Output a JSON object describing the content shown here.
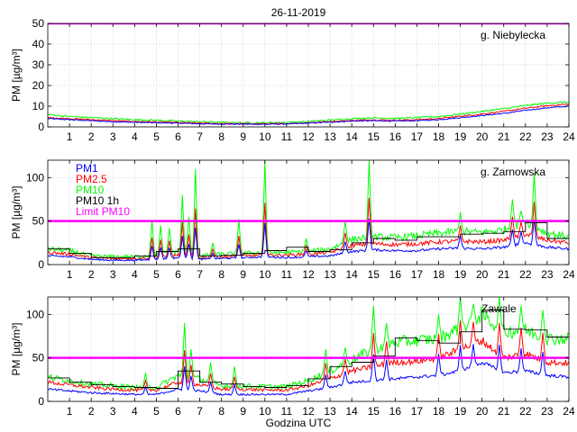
{
  "figure_title": "26-11-2019",
  "x_label": "Godzina UTC",
  "colors": {
    "pm1": "#0000ff",
    "pm25": "#ff0000",
    "pm10": "#00ff00",
    "pm10_1h": "#000000",
    "limit": "#ff00ff"
  },
  "legend": [
    "PM1",
    "PM2.5",
    "PM10",
    "PM10 1h",
    "Limit PM10"
  ],
  "chart_data": [
    {
      "type": "line",
      "station": "g. Niebylecka",
      "ylabel": "PM [µg/m³]",
      "xlim": [
        0,
        24
      ],
      "ylim": [
        0,
        50
      ],
      "yticks": [
        0,
        10,
        20,
        30,
        40,
        50
      ],
      "xticks": [
        1,
        2,
        3,
        4,
        5,
        6,
        7,
        8,
        9,
        10,
        11,
        12,
        13,
        14,
        15,
        16,
        17,
        18,
        19,
        20,
        21,
        22,
        23,
        24
      ],
      "grid": true,
      "limit_pm10": 50,
      "hours": [
        0,
        1,
        2,
        3,
        4,
        5,
        6,
        7,
        8,
        9,
        10,
        11,
        12,
        13,
        14,
        15,
        16,
        17,
        18,
        19,
        20,
        21,
        22,
        23,
        24
      ],
      "series": [
        {
          "name": "PM1",
          "values": [
            4,
            3.5,
            3,
            2.5,
            2.2,
            2,
            1.8,
            1.5,
            1.4,
            1.3,
            1.3,
            1.4,
            1.8,
            2.3,
            2.8,
            3,
            2.8,
            3,
            3.5,
            4.5,
            5.5,
            6.5,
            8,
            9.2,
            10
          ]
        },
        {
          "name": "PM2.5",
          "values": [
            4.5,
            4,
            3.5,
            3,
            2.6,
            2.4,
            2.1,
            1.8,
            1.6,
            1.5,
            1.5,
            1.6,
            2,
            2.6,
            3.1,
            3.4,
            3.2,
            3.5,
            4,
            5.2,
            6.2,
            7.5,
            9,
            10.2,
            11
          ]
        },
        {
          "name": "PM10",
          "values": [
            6,
            5,
            4.5,
            4,
            3.5,
            3.2,
            2.8,
            2.5,
            2.2,
            2,
            2,
            2.2,
            2.6,
            3.3,
            4,
            4.4,
            4.1,
            4.5,
            5,
            6.2,
            7.5,
            8.8,
            10.3,
            11.5,
            12
          ]
        }
      ],
      "pm10_1h": []
    },
    {
      "type": "line",
      "station": "g. Zarnowska",
      "ylabel": "PM [µg/m³]",
      "xlim": [
        0,
        24
      ],
      "ylim": [
        0,
        120
      ],
      "yticks": [
        0,
        50,
        100
      ],
      "xticks": [
        1,
        2,
        3,
        4,
        5,
        6,
        7,
        8,
        9,
        10,
        11,
        12,
        13,
        14,
        15,
        16,
        17,
        18,
        19,
        20,
        21,
        22,
        23,
        24
      ],
      "grid": true,
      "limit_pm10": 50,
      "hours": [
        0,
        1,
        2,
        3,
        4,
        5,
        6,
        7,
        8,
        9,
        10,
        11,
        12,
        13,
        14,
        15,
        16,
        17,
        18,
        19,
        20,
        21,
        22,
        23,
        24
      ],
      "series": [
        {
          "name": "PM1",
          "values": [
            10,
            9,
            6,
            5,
            5,
            6,
            8,
            6,
            7,
            8,
            9,
            8,
            9,
            10,
            15,
            17,
            16,
            16,
            18,
            19,
            18,
            20,
            25,
            20,
            18
          ]
        },
        {
          "name": "PM2.5",
          "values": [
            14,
            12,
            8,
            7,
            7,
            8,
            11,
            8,
            9,
            10,
            11,
            11,
            12,
            14,
            22,
            24,
            23,
            24,
            26,
            27,
            26,
            28,
            35,
            28,
            25
          ]
        },
        {
          "name": "PM10",
          "values": [
            18,
            16,
            10,
            9,
            9,
            11,
            15,
            10,
            12,
            13,
            14,
            14,
            15,
            18,
            29,
            32,
            31,
            33,
            36,
            38,
            37,
            40,
            50,
            36,
            32
          ]
        }
      ],
      "spikes": [
        {
          "h": 4.8,
          "v": 50
        },
        {
          "h": 5.2,
          "v": 45
        },
        {
          "h": 5.6,
          "v": 42
        },
        {
          "h": 6.2,
          "v": 80
        },
        {
          "h": 6.5,
          "v": 55
        },
        {
          "h": 6.8,
          "v": 110
        },
        {
          "h": 7.6,
          "v": 25
        },
        {
          "h": 8.8,
          "v": 52
        },
        {
          "h": 10.0,
          "v": 120
        },
        {
          "h": 11.9,
          "v": 30
        },
        {
          "h": 13.7,
          "v": 50
        },
        {
          "h": 14.8,
          "v": 120
        },
        {
          "h": 19.0,
          "v": 60
        },
        {
          "h": 21.4,
          "v": 75
        },
        {
          "h": 21.8,
          "v": 62
        },
        {
          "h": 22.4,
          "v": 105
        }
      ],
      "pm10_1h": [
        18,
        13,
        8,
        8,
        10,
        15,
        18,
        10,
        11,
        13,
        16,
        20,
        15,
        17,
        25,
        30,
        28,
        32,
        32,
        35,
        36,
        38,
        48,
        30
      ]
    },
    {
      "type": "line",
      "station": "Zawale",
      "ylabel": "PM [µg/m³]",
      "xlim": [
        0,
        24
      ],
      "ylim": [
        0,
        120
      ],
      "yticks": [
        0,
        50,
        100
      ],
      "xticks": [
        1,
        2,
        3,
        4,
        5,
        6,
        7,
        8,
        9,
        10,
        11,
        12,
        13,
        14,
        15,
        16,
        17,
        18,
        19,
        20,
        21,
        22,
        23,
        24
      ],
      "grid": true,
      "limit_pm10": 50,
      "hours": [
        0,
        1,
        2,
        3,
        4,
        5,
        6,
        7,
        8,
        9,
        10,
        11,
        12,
        13,
        14,
        15,
        16,
        17,
        18,
        19,
        20,
        21,
        22,
        23,
        24
      ],
      "series": [
        {
          "name": "PM1",
          "values": [
            14,
            12,
            10,
            9,
            8,
            8,
            14,
            12,
            8,
            8,
            8,
            8,
            12,
            16,
            22,
            24,
            26,
            28,
            30,
            35,
            45,
            33,
            35,
            30,
            28
          ]
        },
        {
          "name": "PM2.5",
          "values": [
            22,
            19,
            16,
            14,
            13,
            13,
            22,
            19,
            14,
            14,
            13,
            13,
            18,
            26,
            35,
            40,
            45,
            46,
            50,
            60,
            70,
            50,
            55,
            45,
            44
          ]
        },
        {
          "name": "PM10",
          "values": [
            28,
            24,
            20,
            18,
            16,
            16,
            30,
            26,
            18,
            18,
            17,
            17,
            24,
            35,
            48,
            60,
            68,
            70,
            72,
            85,
            100,
            80,
            82,
            72,
            72
          ]
        }
      ],
      "spikes": [
        {
          "h": 4.5,
          "v": 33
        },
        {
          "h": 6.3,
          "v": 90
        },
        {
          "h": 6.6,
          "v": 60
        },
        {
          "h": 7.5,
          "v": 45
        },
        {
          "h": 8.6,
          "v": 40
        },
        {
          "h": 12.8,
          "v": 60
        },
        {
          "h": 13.7,
          "v": 62
        },
        {
          "h": 15.0,
          "v": 110
        },
        {
          "h": 15.6,
          "v": 90
        },
        {
          "h": 18.0,
          "v": 100
        },
        {
          "h": 19.0,
          "v": 120
        },
        {
          "h": 19.6,
          "v": 112
        },
        {
          "h": 20.8,
          "v": 120
        },
        {
          "h": 21.8,
          "v": 110
        },
        {
          "h": 22.8,
          "v": 105
        }
      ],
      "pm10_1h": [
        27,
        22,
        19,
        17,
        16,
        15,
        35,
        22,
        20,
        17,
        16,
        18,
        26,
        40,
        45,
        52,
        73,
        70,
        67,
        80,
        105,
        83,
        82,
        74
      ]
    }
  ]
}
